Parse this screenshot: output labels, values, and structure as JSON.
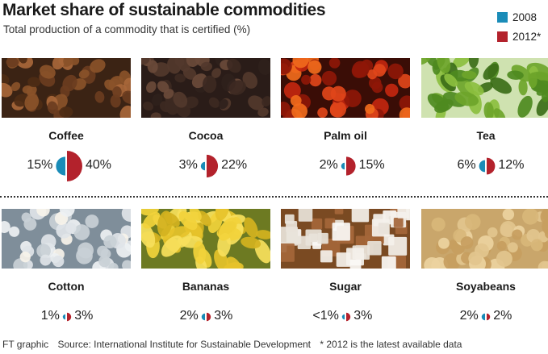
{
  "title": "Market share of sustainable commodities",
  "subtitle": "Total production of a commodity that is certified (%)",
  "legend": [
    {
      "label": "2008",
      "color": "#1a8cb8"
    },
    {
      "label": "2012*",
      "color": "#b3222c"
    }
  ],
  "colors": {
    "y2008": "#1a8cb8",
    "y2012": "#b3222c"
  },
  "chart_data": {
    "type": "pie",
    "title": "Market share of sustainable commodities",
    "subtitle": "Total production of a commodity that is certified (%)",
    "series": [
      {
        "name": "2008",
        "values": [
          15,
          3,
          2,
          6,
          1,
          2,
          1,
          2
        ]
      },
      {
        "name": "2012*",
        "values": [
          40,
          22,
          15,
          12,
          3,
          3,
          3,
          2
        ]
      }
    ],
    "categories": [
      "Coffee",
      "Cocoa",
      "Palm oil",
      "Tea",
      "Cotton",
      "Bananas",
      "Sugar",
      "Soyabeans"
    ],
    "items": [
      {
        "name": "Coffee",
        "y2008": 15,
        "y2012": 40,
        "label2008": "15%",
        "label2012": "40%",
        "icon": "coffee-beans-photo"
      },
      {
        "name": "Cocoa",
        "y2008": 3,
        "y2012": 22,
        "label2008": "3%",
        "label2012": "22%",
        "icon": "cocoa-beans-photo"
      },
      {
        "name": "Palm oil",
        "y2008": 2,
        "y2012": 15,
        "label2008": "2%",
        "label2012": "15%",
        "icon": "palm-fruit-photo"
      },
      {
        "name": "Tea",
        "y2008": 6,
        "y2012": 12,
        "label2008": "6%",
        "label2012": "12%",
        "icon": "tea-leaves-photo"
      },
      {
        "name": "Cotton",
        "y2008": 1,
        "y2012": 3,
        "label2008": "1%",
        "label2012": "3%",
        "icon": "cotton-field-photo"
      },
      {
        "name": "Bananas",
        "y2008": 2,
        "y2012": 3,
        "label2008": "2%",
        "label2012": "3%",
        "icon": "bananas-photo"
      },
      {
        "name": "Sugar",
        "y2008": 1,
        "y2012": 3,
        "label2008": "<1%",
        "label2012": "3%",
        "icon": "sugar-cubes-photo"
      },
      {
        "name": "Soyabeans",
        "y2008": 2,
        "y2012": 2,
        "label2008": "2%",
        "label2012": "2%",
        "icon": "soyabeans-photo"
      }
    ]
  },
  "footer": {
    "credit": "FT graphic",
    "source": "Source: International Institute for Sustainable Development",
    "note": "* 2012 is the latest available data"
  }
}
